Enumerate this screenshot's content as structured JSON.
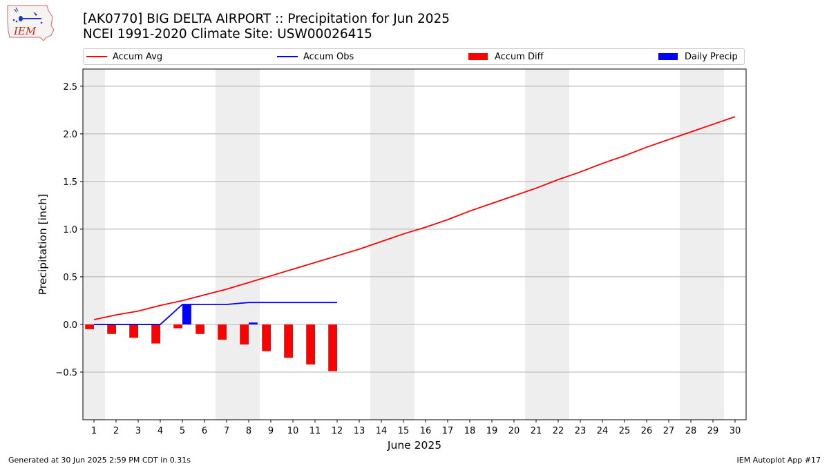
{
  "header": {
    "title_line1": "[AK0770] BIG DELTA AIRPORT :: Precipitation for Jun 2025",
    "title_line2": "NCEI 1991-2020 Climate Site: USW00026415",
    "logo_text": "IEM"
  },
  "footer": {
    "left": "Generated at 30 Jun 2025 2:59 PM CDT in 0.31s",
    "right": "IEM Autoplot App #17"
  },
  "colors": {
    "accum_avg": "#ff0000",
    "accum_obs": "#0000ff",
    "accum_diff": "#ff0000",
    "daily_precip": "#0000ff",
    "weekend_band": "#eeeeee",
    "grid": "#b0b0b0"
  },
  "chart_data": {
    "type": "line",
    "xlabel": "June 2025",
    "ylabel": "Precipitation [inch]",
    "xlim": [
      0.5,
      30.5
    ],
    "ylim": [
      -1.0,
      2.68
    ],
    "x_ticks": [
      1,
      2,
      3,
      4,
      5,
      6,
      7,
      8,
      9,
      10,
      11,
      12,
      13,
      14,
      15,
      16,
      17,
      18,
      19,
      20,
      21,
      22,
      23,
      24,
      25,
      26,
      27,
      28,
      29,
      30
    ],
    "y_ticks": [
      -0.5,
      0.0,
      0.5,
      1.0,
      1.5,
      2.0,
      2.5
    ],
    "y_tick_labels": [
      "−0.5",
      "0.0",
      "0.5",
      "1.0",
      "1.5",
      "2.0",
      "2.5"
    ],
    "grid": "horizontal",
    "legend_position": "top",
    "weekend_bands": [
      [
        0.5,
        1.5
      ],
      [
        6.5,
        8.5
      ],
      [
        13.5,
        15.5
      ],
      [
        20.5,
        22.5
      ],
      [
        27.5,
        29.5
      ]
    ],
    "series": [
      {
        "name": "Accum Avg",
        "kind": "line",
        "x": [
          1,
          2,
          3,
          4,
          5,
          6,
          7,
          8,
          9,
          10,
          11,
          12,
          13,
          14,
          15,
          16,
          17,
          18,
          19,
          20,
          21,
          22,
          23,
          24,
          25,
          26,
          27,
          28,
          29,
          30
        ],
        "values": [
          0.05,
          0.1,
          0.14,
          0.2,
          0.25,
          0.31,
          0.37,
          0.44,
          0.51,
          0.58,
          0.65,
          0.72,
          0.79,
          0.87,
          0.95,
          1.02,
          1.1,
          1.19,
          1.27,
          1.35,
          1.43,
          1.52,
          1.6,
          1.69,
          1.77,
          1.86,
          1.94,
          2.02,
          2.1,
          2.18
        ]
      },
      {
        "name": "Accum Obs",
        "kind": "line",
        "x": [
          1,
          2,
          3,
          4,
          5,
          6,
          7,
          8,
          9,
          10,
          11,
          12
        ],
        "values": [
          0.0,
          0.0,
          0.0,
          0.0,
          0.21,
          0.21,
          0.21,
          0.23,
          0.23,
          0.23,
          0.23,
          0.23
        ]
      },
      {
        "name": "Accum Diff",
        "kind": "bar",
        "x": [
          1,
          2,
          3,
          4,
          5,
          6,
          7,
          8,
          9,
          10,
          11,
          12
        ],
        "values": [
          -0.05,
          -0.1,
          -0.14,
          -0.2,
          -0.04,
          -0.1,
          -0.16,
          -0.21,
          -0.28,
          -0.35,
          -0.42,
          -0.49
        ]
      },
      {
        "name": "Daily Precip",
        "kind": "bar",
        "x": [
          1,
          2,
          3,
          4,
          5,
          6,
          7,
          8,
          9,
          10,
          11,
          12
        ],
        "values": [
          0,
          0,
          0,
          0,
          0.21,
          0,
          0,
          0.02,
          0,
          0,
          0,
          0
        ]
      }
    ]
  }
}
